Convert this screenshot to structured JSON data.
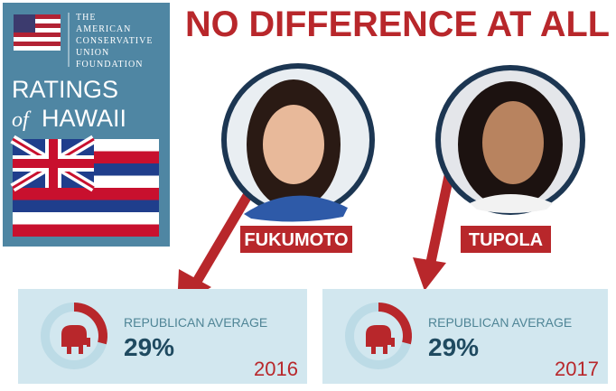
{
  "logo": {
    "lines": [
      "THE",
      "AMERICAN",
      "CONSERVATIVE",
      "UNION",
      "FOUNDATION"
    ],
    "ratings": "RATINGS",
    "of": "of",
    "state": "HAWAII"
  },
  "title": "NO DIFFERENCE AT ALL",
  "people": [
    {
      "name": "FUKUMOTO"
    },
    {
      "name": "TUPOLA"
    }
  ],
  "cards": [
    {
      "label": "REPUBLICAN AVERAGE",
      "value": 29,
      "value_label": "29%",
      "year": "2016"
    },
    {
      "label": "REPUBLICAN AVERAGE",
      "value": 29,
      "value_label": "29%",
      "year": "2017"
    }
  ]
}
